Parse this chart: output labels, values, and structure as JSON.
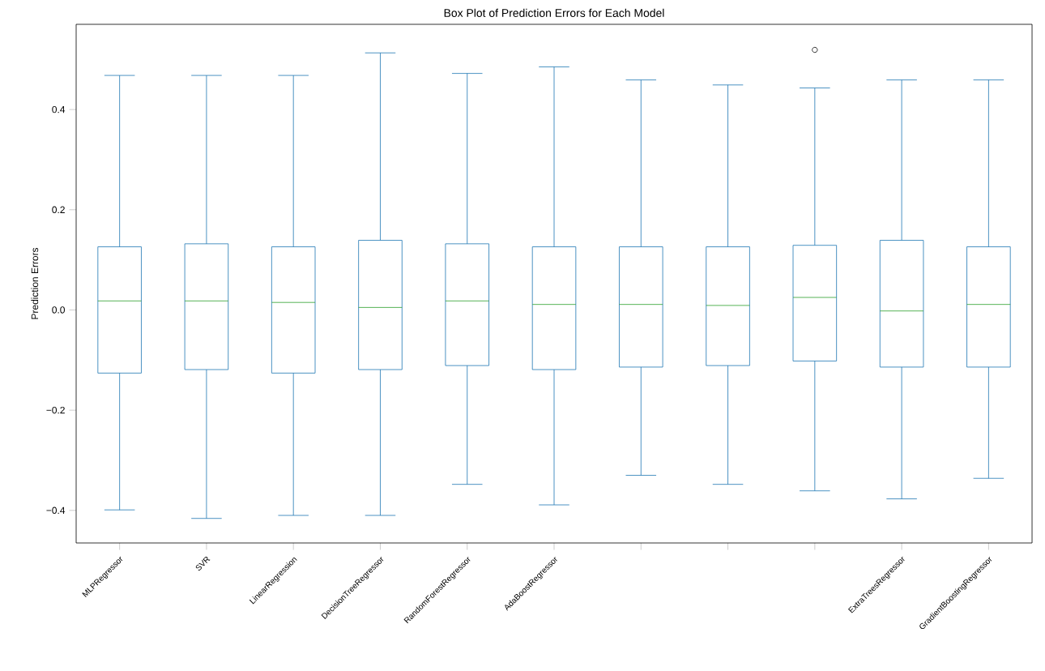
{
  "chart_data": {
    "type": "box",
    "title": "Box Plot of Prediction Errors for Each Model",
    "ylabel": "Prediction Errors",
    "categories": [
      "MLPRegressor",
      "SVR",
      "LinearRegression",
      "DecisionTreeRegressor",
      "RandomForestRegressor",
      "AdaBoostRegressor",
      null,
      null,
      null,
      "ExtraTreesRegressor",
      "GradientBoostingRegressor"
    ],
    "boxes": [
      {
        "low": -0.399,
        "q1": -0.126,
        "median": 0.018,
        "q3": 0.126,
        "high": 0.468
      },
      {
        "low": -0.416,
        "q1": -0.119,
        "median": 0.018,
        "q3": 0.132,
        "high": 0.468
      },
      {
        "low": -0.41,
        "q1": -0.126,
        "median": 0.015,
        "q3": 0.126,
        "high": 0.468
      },
      {
        "low": -0.41,
        "q1": -0.119,
        "median": 0.005,
        "q3": 0.139,
        "high": 0.513
      },
      {
        "low": -0.348,
        "q1": -0.111,
        "median": 0.018,
        "q3": 0.132,
        "high": 0.472
      },
      {
        "low": -0.389,
        "q1": -0.119,
        "median": 0.011,
        "q3": 0.126,
        "high": 0.485
      },
      {
        "low": -0.33,
        "q1": -0.114,
        "median": 0.011,
        "q3": 0.126,
        "high": 0.459
      },
      {
        "low": -0.348,
        "q1": -0.111,
        "median": 0.009,
        "q3": 0.126,
        "high": 0.449
      },
      {
        "low": -0.361,
        "q1": -0.102,
        "median": 0.025,
        "q3": 0.129,
        "high": 0.443,
        "outliers": [
          0.519
        ]
      },
      {
        "low": -0.377,
        "q1": -0.114,
        "median": -0.002,
        "q3": 0.139,
        "high": 0.459
      },
      {
        "low": -0.336,
        "q1": -0.114,
        "median": 0.011,
        "q3": 0.126,
        "high": 0.459
      }
    ],
    "color": "#1f77b4",
    "ylim": [
      -0.465,
      0.57
    ],
    "yticks": [
      {
        "value": -0.4,
        "label": "−0.4"
      },
      {
        "value": -0.2,
        "label": "−0.2"
      },
      {
        "value": 0.0,
        "label": "0.0"
      },
      {
        "value": 0.2,
        "label": "0.2"
      },
      {
        "value": 0.4,
        "label": "0.4"
      }
    ],
    "grid": false
  }
}
